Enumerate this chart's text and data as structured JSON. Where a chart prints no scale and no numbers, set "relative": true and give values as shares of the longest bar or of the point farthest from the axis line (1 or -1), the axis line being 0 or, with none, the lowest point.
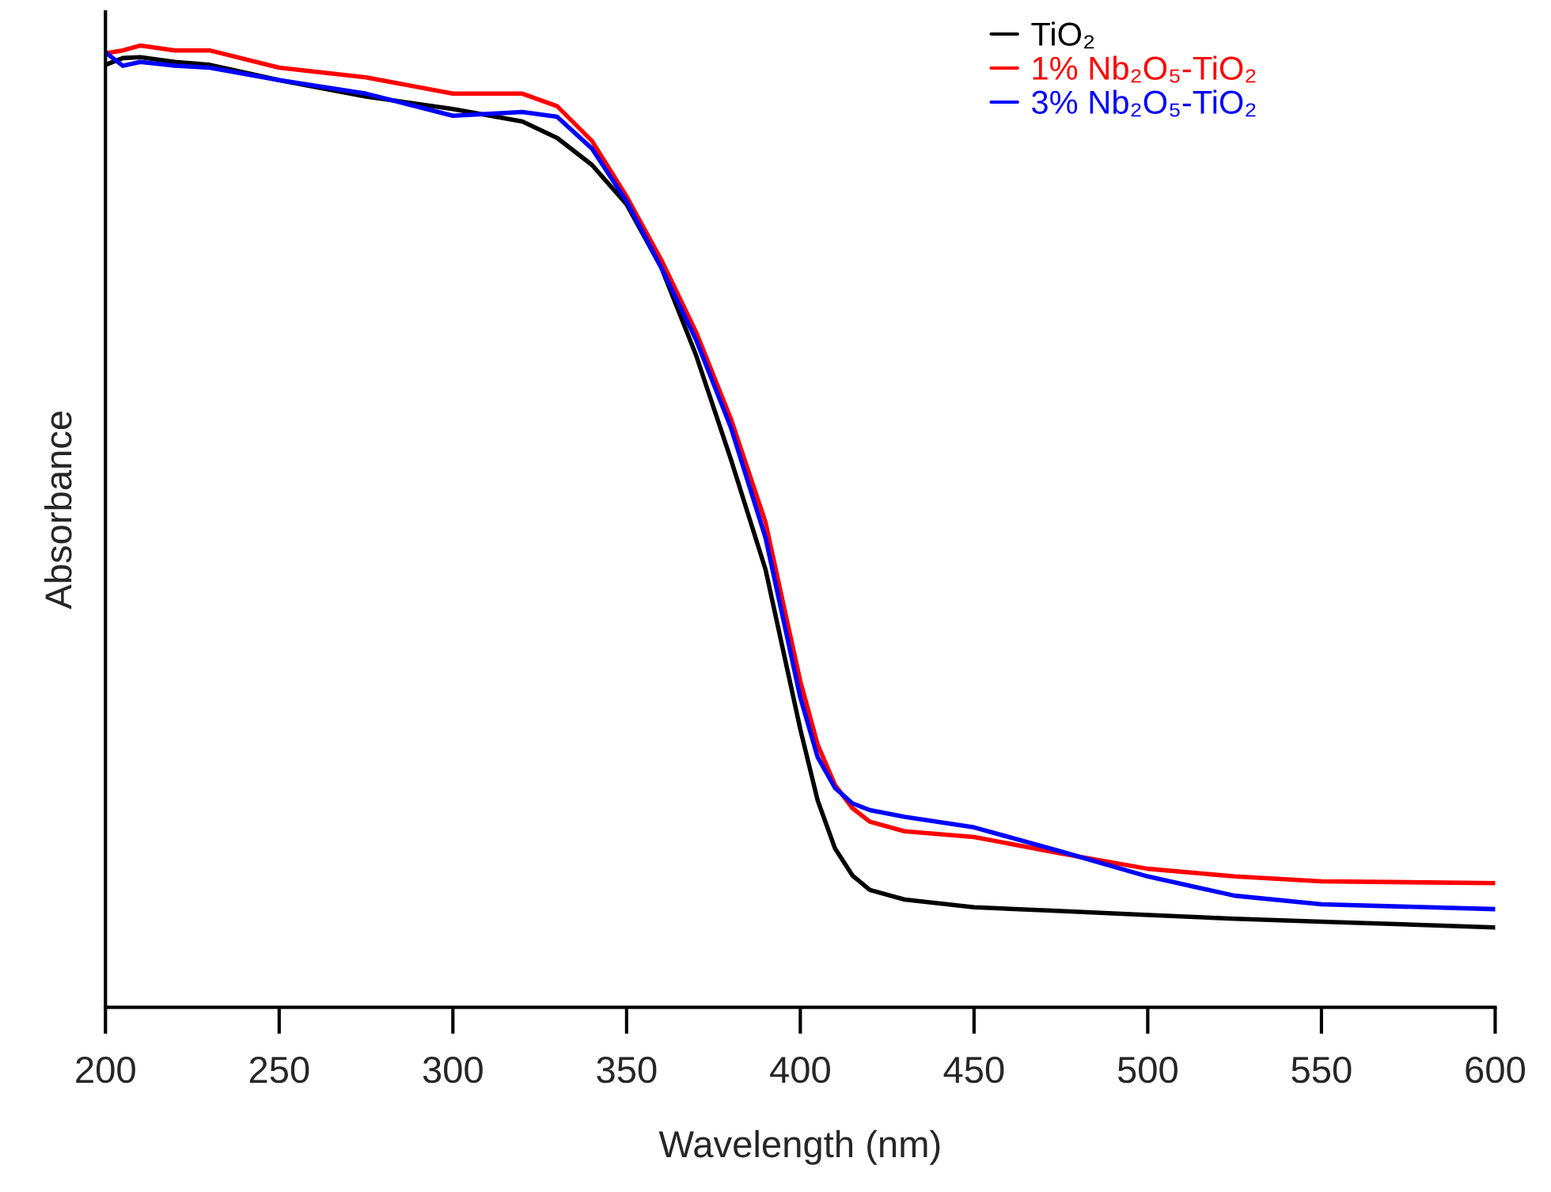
{
  "chart_data": {
    "type": "line",
    "relative": true,
    "xlabel": "Wavelength (nm)",
    "ylabel": "Absorbance",
    "xlim": [
      200,
      600
    ],
    "xticks": [
      200,
      250,
      300,
      350,
      400,
      450,
      500,
      550,
      600
    ],
    "grid": false,
    "legend": "top right",
    "tick_labels": "x",
    "line_style": "solid",
    "marker": "none",
    "x": [
      200,
      205,
      210,
      220,
      230,
      250,
      275,
      300,
      320,
      330,
      340,
      350,
      360,
      370,
      380,
      390,
      395,
      400,
      405,
      410,
      415,
      420,
      430,
      450,
      475,
      500,
      525,
      550,
      600
    ],
    "series": [
      {
        "name": "TiO₂",
        "color": "#000000",
        "values": [
          0.98,
          0.987,
          0.988,
          0.983,
          0.98,
          0.964,
          0.947,
          0.934,
          0.921,
          0.904,
          0.876,
          0.835,
          0.769,
          0.678,
          0.57,
          0.455,
          0.372,
          0.289,
          0.215,
          0.165,
          0.137,
          0.122,
          0.112,
          0.104,
          0.1,
          0.096,
          0.092,
          0.089,
          0.083
        ]
      },
      {
        "name": "1% Nb₂O₅-TiO₂",
        "color": "#ff0000",
        "values": [
          0.992,
          0.995,
          1.0,
          0.995,
          0.995,
          0.977,
          0.967,
          0.95,
          0.95,
          0.937,
          0.901,
          0.843,
          0.777,
          0.702,
          0.612,
          0.504,
          0.421,
          0.339,
          0.273,
          0.231,
          0.207,
          0.193,
          0.183,
          0.177,
          0.16,
          0.144,
          0.136,
          0.131,
          0.129
        ]
      },
      {
        "name": "3% Nb₂O₅-TiO₂",
        "color": "#0000ff",
        "values": [
          0.993,
          0.979,
          0.983,
          0.979,
          0.977,
          0.964,
          0.95,
          0.927,
          0.931,
          0.926,
          0.893,
          0.838,
          0.769,
          0.694,
          0.603,
          0.488,
          0.405,
          0.322,
          0.26,
          0.228,
          0.212,
          0.205,
          0.198,
          0.187,
          0.162,
          0.136,
          0.116,
          0.107,
          0.102
        ]
      }
    ]
  }
}
